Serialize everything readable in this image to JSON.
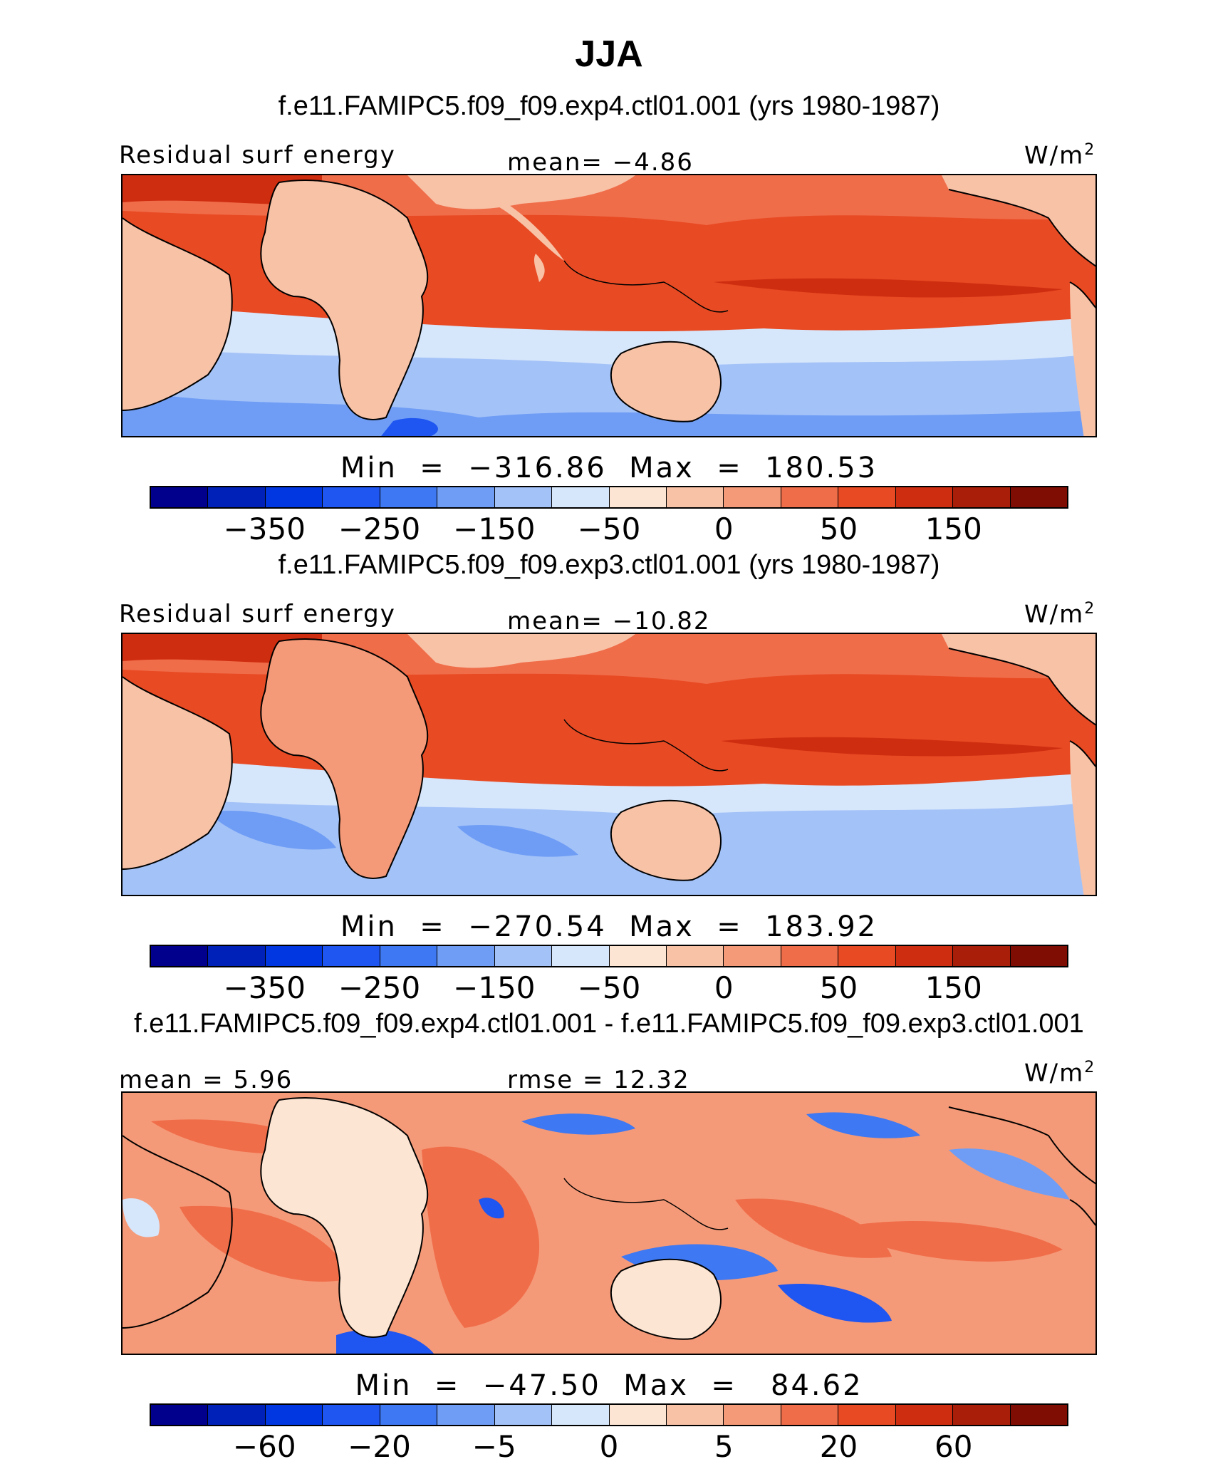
{
  "title": "JJA",
  "units": "W/m",
  "units_exp": "2",
  "panels": [
    {
      "title": "f.e11.FAMIPC5.f09_f09.exp4.ctl01.001 (yrs 1980-1987)",
      "left_label": "Residual surf energy",
      "center_label": "mean=   −4.86",
      "stats": "Min  =  −316.86  Max  =  180.53",
      "ticks": [
        "−350",
        "−250",
        "−150",
        "−50",
        "0",
        "50",
        "150"
      ]
    },
    {
      "title": "f.e11.FAMIPC5.f09_f09.exp3.ctl01.001 (yrs 1980-1987)",
      "left_label": "Residual surf energy",
      "center_label": "mean= −10.82",
      "stats": "Min  =  −270.54  Max  =  183.92",
      "ticks": [
        "−350",
        "−250",
        "−150",
        "−50",
        "0",
        "50",
        "150"
      ]
    },
    {
      "title": "f.e11.FAMIPC5.f09_f09.exp4.ctl01.001 - f.e11.FAMIPC5.f09_f09.exp3.ctl01.001",
      "left_label": "mean =    5.96",
      "center_label": "rmse  =   12.32",
      "stats": "Min  =  −47.50  Max  =   84.62",
      "ticks": [
        "−60",
        "−20",
        "−5",
        "0",
        "5",
        "20",
        "60"
      ]
    }
  ],
  "colorbar_colors": [
    "#00008c",
    "#0021b8",
    "#0037e0",
    "#1f55f0",
    "#3e78f2",
    "#6f9df5",
    "#a3c2f8",
    "#d6e6fb",
    "#fde5d3",
    "#f8c2a7",
    "#f59a78",
    "#f06d4a",
    "#e84a23",
    "#cf2d10",
    "#a81e08",
    "#7f0d03"
  ],
  "colorbar_tick_boundaries": [
    1,
    3,
    5,
    7,
    9,
    11,
    13
  ]
}
